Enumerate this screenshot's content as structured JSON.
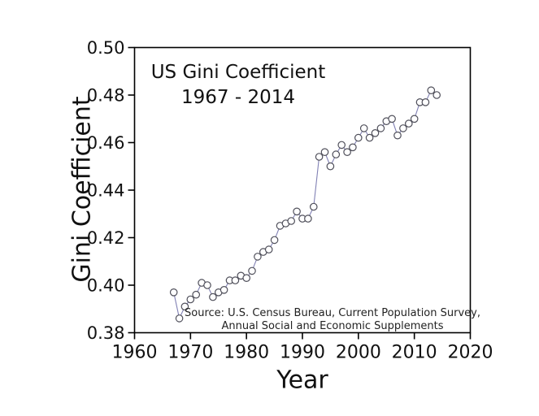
{
  "title": {
    "line1": "US Gini Coefficient",
    "line2": "1967 - 2014"
  },
  "source": {
    "line1": "Source: U.S. Census Bureau, Current Population Survey,",
    "line2": "Annual Social and Economic Supplements"
  },
  "colors": {
    "line": "#8080b4",
    "marker_edge": "#4f4f5a",
    "marker_fill": "#ffffff",
    "axis": "#000000",
    "text": "#111111"
  },
  "chart_data": {
    "type": "line",
    "title": "US Gini Coefficient 1967 - 2014",
    "xlabel": "Year",
    "ylabel": "Gini Coefficient",
    "xlim": [
      1960,
      2020
    ],
    "ylim": [
      0.38,
      0.5
    ],
    "x_ticks": [
      "1960",
      "1970",
      "1980",
      "1990",
      "2000",
      "2010",
      "2020"
    ],
    "y_ticks": [
      "0.50",
      "0.48",
      "0.46",
      "0.44",
      "0.42",
      "0.40",
      "0.38"
    ],
    "grid": false,
    "legend": "none",
    "marker_style": "open-circle",
    "annotation": "Source: U.S. Census Bureau, Current Population Survey, Annual Social and Economic Supplements",
    "series": [
      {
        "name": "US Gini Coefficient",
        "x": [
          1967,
          1968,
          1969,
          1970,
          1971,
          1972,
          1973,
          1974,
          1975,
          1976,
          1977,
          1978,
          1979,
          1980,
          1981,
          1982,
          1983,
          1984,
          1985,
          1986,
          1987,
          1988,
          1989,
          1990,
          1991,
          1992,
          1993,
          1994,
          1995,
          1996,
          1997,
          1998,
          1999,
          2000,
          2001,
          2002,
          2003,
          2004,
          2005,
          2006,
          2007,
          2008,
          2009,
          2010,
          2011,
          2012,
          2013,
          2014
        ],
        "y": [
          0.397,
          0.386,
          0.391,
          0.394,
          0.396,
          0.401,
          0.4,
          0.395,
          0.397,
          0.398,
          0.402,
          0.402,
          0.404,
          0.403,
          0.406,
          0.412,
          0.414,
          0.415,
          0.419,
          0.425,
          0.426,
          0.427,
          0.431,
          0.428,
          0.428,
          0.433,
          0.454,
          0.456,
          0.45,
          0.455,
          0.459,
          0.456,
          0.458,
          0.462,
          0.466,
          0.462,
          0.464,
          0.466,
          0.469,
          0.47,
          0.463,
          0.466,
          0.468,
          0.47,
          0.477,
          0.477,
          0.482,
          0.48
        ]
      }
    ]
  }
}
